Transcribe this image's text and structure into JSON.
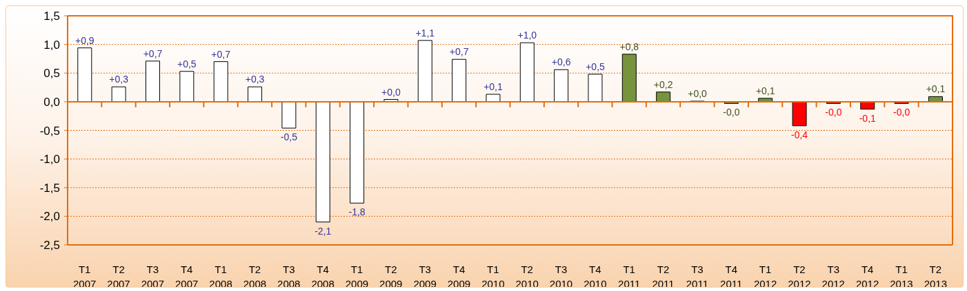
{
  "chart_data": {
    "type": "bar",
    "categories": [
      "T1 2007",
      "T2 2007",
      "T3 2007",
      "T4 2007",
      "T1 2008",
      "T2 2008",
      "T3 2008",
      "T4 2008",
      "T1 2009",
      "T2 2009",
      "T3 2009",
      "T4 2009",
      "T1 2010",
      "T2 2010",
      "T3 2010",
      "T4 2010",
      "T1 2011",
      "T2 2011",
      "T3 2011",
      "T4 2011",
      "T1 2012",
      "T2 2012",
      "T3 2012",
      "T4 2012",
      "T1 2013",
      "T2 2013"
    ],
    "values": [
      0.94,
      0.26,
      0.71,
      0.53,
      0.7,
      0.26,
      -0.46,
      -2.1,
      -1.77,
      0.04,
      1.07,
      0.74,
      0.13,
      1.03,
      0.56,
      0.48,
      0.83,
      0.17,
      0.01,
      -0.03,
      0.06,
      -0.42,
      -0.03,
      -0.13,
      -0.03,
      0.09
    ],
    "colors": [
      "#ffffff",
      "#ffffff",
      "#ffffff",
      "#ffffff",
      "#ffffff",
      "#ffffff",
      "#ffffff",
      "#ffffff",
      "#ffffff",
      "#ffffff",
      "#ffffff",
      "#ffffff",
      "#ffffff",
      "#ffffff",
      "#ffffff",
      "#ffffff",
      "#77933c",
      "#77933c",
      "#77933c",
      "#77933c",
      "#77933c",
      "#ff0000",
      "#ff0000",
      "#ff0000",
      "#ff0000",
      "#77933c"
    ],
    "value_labels": [
      "+0,9",
      "+0,3",
      "+0,7",
      "+0,5",
      "+0,7",
      "+0,3",
      "-0,5",
      "-2,1",
      "-1,8",
      "+0,0",
      "+1,1",
      "+0,7",
      "+0,1",
      "+1,0",
      "+0,6",
      "+0,5",
      "+0,8",
      "+0,2",
      "+0,0",
      "-0,0",
      "+0,1",
      "-0,4",
      "-0,0",
      "-0,1",
      "-0,0",
      "+0,1"
    ],
    "ylim": [
      -2.5,
      1.5
    ],
    "yticks": [
      {
        "value": -2.5,
        "label": "-2,5"
      },
      {
        "value": -2,
        "label": "-2,0"
      },
      {
        "value": -1.5,
        "label": "-1,5"
      },
      {
        "value": -1,
        "label": "-1,0"
      },
      {
        "value": -0.5,
        "label": "-0,5"
      },
      {
        "value": 0,
        "label": "0,0"
      },
      {
        "value": 0.5,
        "label": "0,5"
      },
      {
        "value": 1,
        "label": "1,0"
      },
      {
        "value": 1.5,
        "label": "1,5"
      }
    ],
    "ref_lines": [
      {
        "axis": "y",
        "value": 0,
        "color": "#e46c0a",
        "line_style": "solid"
      }
    ],
    "grid": "y"
  }
}
